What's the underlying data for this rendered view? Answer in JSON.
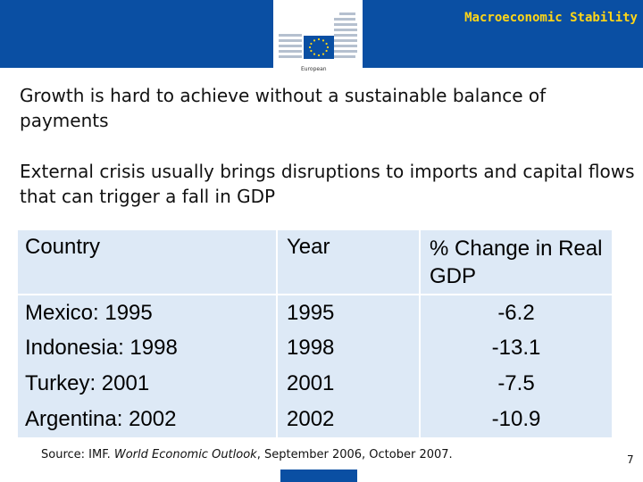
{
  "header": {
    "section_title": "Macroeconomic Stability",
    "logo_label": "European"
  },
  "content": {
    "paragraph1": "Growth is hard to achieve without a sustainable balance of payments",
    "paragraph2": "External crisis usually brings disruptions to imports and capital flows that can trigger a fall in GDP"
  },
  "table": {
    "headers": {
      "country": "Country",
      "year": "Year",
      "change": "% Change in Real GDP"
    },
    "rows": [
      {
        "country": "Mexico: 1995",
        "year": "1995",
        "change": "-6.2"
      },
      {
        "country": "Indonesia: 1998",
        "year": "1998",
        "change": "-13.1"
      },
      {
        "country": "Turkey: 2001",
        "year": "2001",
        "change": "-7.5"
      },
      {
        "country": "Argentina: 2002",
        "year": "2002",
        "change": "-10.9"
      }
    ]
  },
  "footer": {
    "source_prefix": "Source: IMF. ",
    "source_title": "World Economic Outlook",
    "source_suffix": ", September 2006, October 2007.",
    "page_number": "7"
  },
  "colors": {
    "brand_blue": "#0a4fa3",
    "title_yellow": "#ffd617",
    "table_bg": "#dde9f6"
  }
}
